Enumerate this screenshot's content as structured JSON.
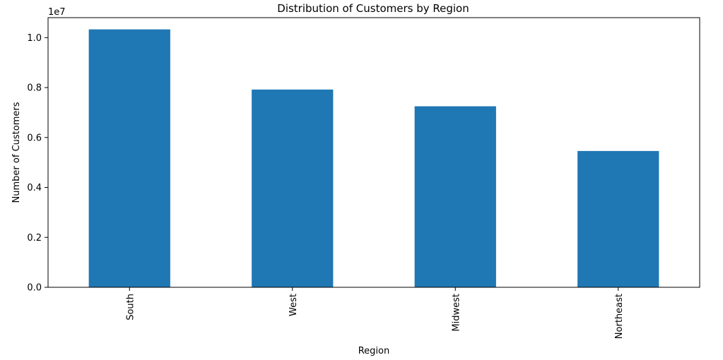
{
  "chart_data": {
    "type": "bar",
    "title": "Distribution of Customers by Region",
    "xlabel": "Region",
    "ylabel": "Number of Customers",
    "y_offset_label": "1e7",
    "categories": [
      "South",
      "West",
      "Midwest",
      "Northeast"
    ],
    "values": [
      10330000,
      7920000,
      7250000,
      5460000
    ],
    "ylim": [
      0,
      10800000
    ],
    "yticks": [
      0,
      2000000,
      4000000,
      6000000,
      8000000,
      10000000
    ],
    "ytick_labels": [
      "0.0",
      "0.2",
      "0.4",
      "0.6",
      "0.8",
      "1.0"
    ],
    "bar_color": "#1f77b4",
    "grid": false,
    "legend": false
  }
}
